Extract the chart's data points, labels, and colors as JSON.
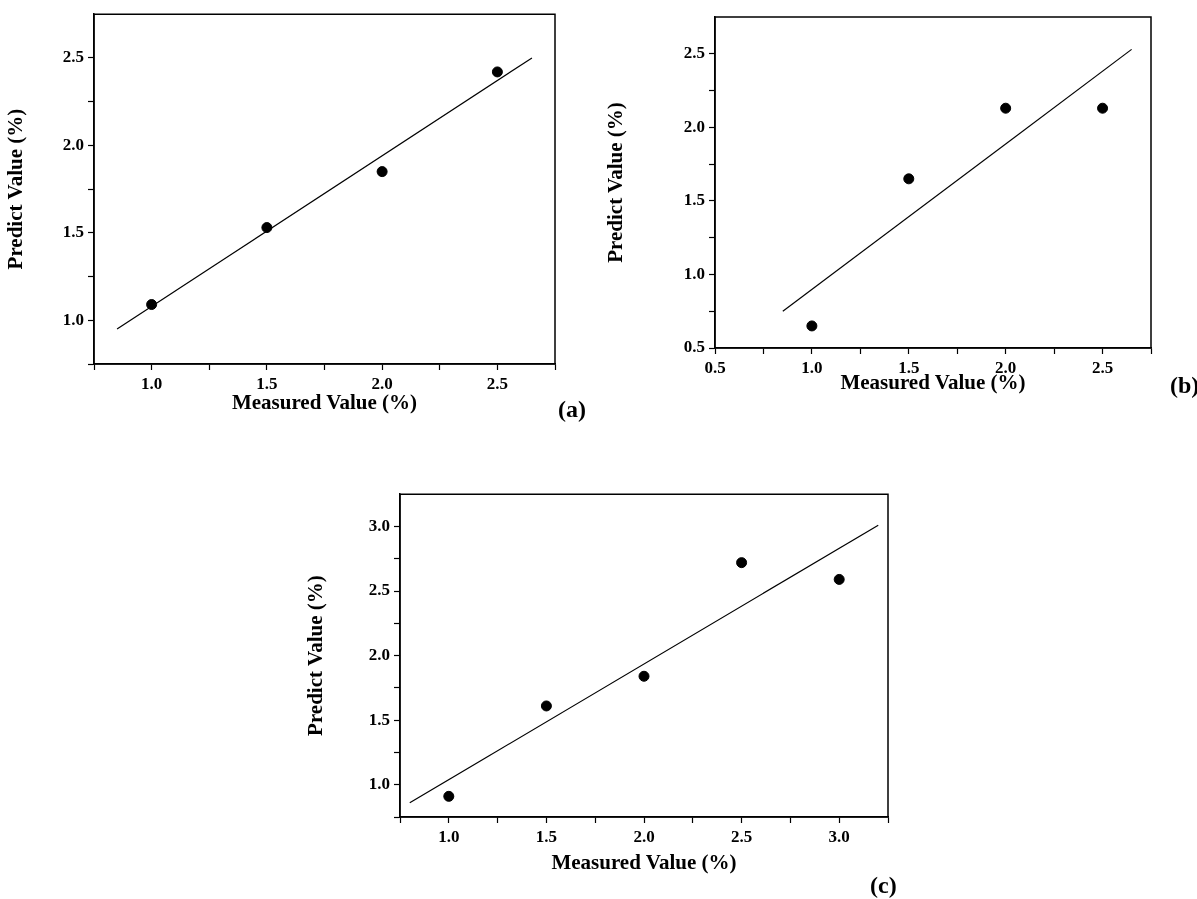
{
  "chart_data": [
    {
      "type": "scatter",
      "xlabel": "Measured Value (%)",
      "ylabel": "Predict Value (%)",
      "annotations": [
        "(a)"
      ],
      "grid": false,
      "xlim": [
        0.75,
        2.75
      ],
      "ylim": [
        0.75,
        2.75
      ],
      "xticks": [
        {
          "value": 0.75,
          "label": null
        },
        {
          "value": 1,
          "label": "1.0"
        },
        {
          "value": 1.25,
          "label": null
        },
        {
          "value": 1.5,
          "label": "1.5"
        },
        {
          "value": 1.75,
          "label": null
        },
        {
          "value": 2,
          "label": "2.0"
        },
        {
          "value": 2.25,
          "label": null
        },
        {
          "value": 2.5,
          "label": "2.5"
        },
        {
          "value": 2.75,
          "label": null
        }
      ],
      "yticks": [
        {
          "value": 0.75,
          "label": null
        },
        {
          "value": 1,
          "label": "1.0"
        },
        {
          "value": 1.25,
          "label": null
        },
        {
          "value": 1.5,
          "label": "1.5"
        },
        {
          "value": 1.75,
          "label": null
        },
        {
          "value": 2,
          "label": "2.0"
        },
        {
          "value": 2.25,
          "label": null
        },
        {
          "value": 2.5,
          "label": "2.5"
        }
      ],
      "series": [
        {
          "type": "scatter",
          "marker": "circle",
          "color": "#000000",
          "x": [
            1,
            1.5,
            2,
            2.5
          ],
          "values": [
            1.09,
            1.53,
            1.85,
            2.42
          ]
        },
        {
          "type": "line",
          "marker": "none",
          "color": "#000000",
          "x": [
            0.85,
            2.65
          ],
          "values": [
            0.95,
            2.5
          ]
        }
      ]
    },
    {
      "type": "scatter",
      "xlabel": "Measured Value (%)",
      "ylabel": "Predict Value (%)",
      "annotations": [
        "(b)"
      ],
      "grid": false,
      "xlim": [
        0.5,
        2.75
      ],
      "ylim": [
        0.5,
        2.75
      ],
      "xticks": [
        {
          "value": 0.5,
          "label": "0.5"
        },
        {
          "value": 0.75,
          "label": null
        },
        {
          "value": 1,
          "label": "1.0"
        },
        {
          "value": 1.25,
          "label": null
        },
        {
          "value": 1.5,
          "label": "1.5"
        },
        {
          "value": 1.75,
          "label": null
        },
        {
          "value": 2,
          "label": "2.0"
        },
        {
          "value": 2.25,
          "label": null
        },
        {
          "value": 2.5,
          "label": "2.5"
        },
        {
          "value": 2.75,
          "label": null
        }
      ],
      "yticks": [
        {
          "value": 0.5,
          "label": "0.5"
        },
        {
          "value": 0.75,
          "label": null
        },
        {
          "value": 1,
          "label": "1.0"
        },
        {
          "value": 1.25,
          "label": null
        },
        {
          "value": 1.5,
          "label": "1.5"
        },
        {
          "value": 1.75,
          "label": null
        },
        {
          "value": 2,
          "label": "2.0"
        },
        {
          "value": 2.25,
          "label": null
        },
        {
          "value": 2.5,
          "label": "2.5"
        }
      ],
      "series": [
        {
          "type": "scatter",
          "marker": "circle",
          "color": "#000000",
          "x": [
            1,
            1.5,
            2,
            2.5
          ],
          "values": [
            0.65,
            1.65,
            2.13,
            2.13
          ]
        },
        {
          "type": "line",
          "marker": "none",
          "color": "#000000",
          "x": [
            0.85,
            2.65
          ],
          "values": [
            0.75,
            2.53
          ]
        }
      ]
    },
    {
      "type": "scatter",
      "xlabel": "Measured Value (%)",
      "ylabel": "Predict Value (%)",
      "annotations": [
        "(c)"
      ],
      "grid": false,
      "xlim": [
        0.75,
        3.25
      ],
      "ylim": [
        0.75,
        3.25
      ],
      "xticks": [
        {
          "value": 0.75,
          "label": null
        },
        {
          "value": 1,
          "label": "1.0"
        },
        {
          "value": 1.25,
          "label": null
        },
        {
          "value": 1.5,
          "label": "1.5"
        },
        {
          "value": 1.75,
          "label": null
        },
        {
          "value": 2,
          "label": "2.0"
        },
        {
          "value": 2.25,
          "label": null
        },
        {
          "value": 2.5,
          "label": "2.5"
        },
        {
          "value": 2.75,
          "label": null
        },
        {
          "value": 3,
          "label": "3.0"
        },
        {
          "value": 3.25,
          "label": null
        }
      ],
      "yticks": [
        {
          "value": 0.75,
          "label": null
        },
        {
          "value": 1,
          "label": "1.0"
        },
        {
          "value": 1.25,
          "label": null
        },
        {
          "value": 1.5,
          "label": "1.5"
        },
        {
          "value": 1.75,
          "label": null
        },
        {
          "value": 2,
          "label": "2.0"
        },
        {
          "value": 2.25,
          "label": null
        },
        {
          "value": 2.5,
          "label": "2.5"
        },
        {
          "value": 2.75,
          "label": null
        },
        {
          "value": 3,
          "label": "3.0"
        }
      ],
      "series": [
        {
          "type": "scatter",
          "marker": "circle",
          "color": "#000000",
          "x": [
            1,
            1.5,
            2,
            2.5,
            3
          ],
          "values": [
            0.91,
            1.61,
            1.84,
            2.72,
            2.59
          ]
        },
        {
          "type": "line",
          "marker": "none",
          "color": "#000000",
          "x": [
            0.8,
            3.2
          ],
          "values": [
            0.86,
            3.01
          ]
        }
      ]
    }
  ]
}
